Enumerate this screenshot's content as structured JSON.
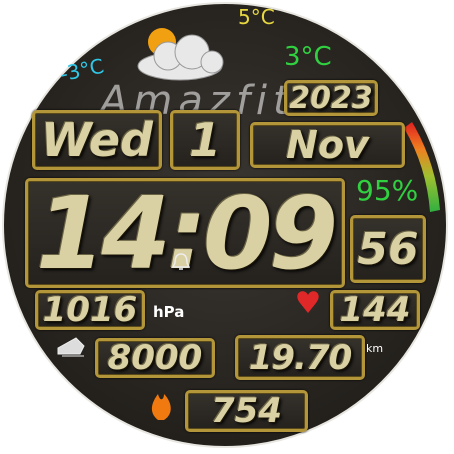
{
  "weather": {
    "low": "-3°C",
    "high": "5°C",
    "current": "3°C"
  },
  "brand": "Amazfit",
  "date": {
    "year": "2023",
    "weekday": "Wed",
    "day": "1",
    "month": "Nov"
  },
  "time": {
    "hours": "14",
    "separator": ":",
    "minutes": "09",
    "seconds": "56"
  },
  "battery": "95%",
  "pressure": {
    "value": "1016",
    "unit": "hPa"
  },
  "heart_rate": "144",
  "steps": "8000",
  "distance": {
    "value": "19.70",
    "unit": "km"
  },
  "calories": "754"
}
